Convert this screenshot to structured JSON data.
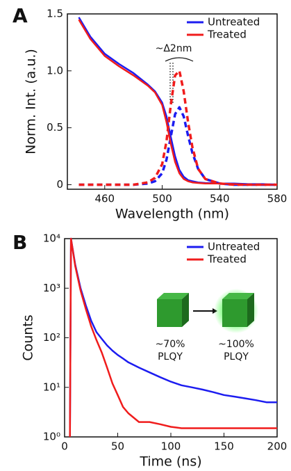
{
  "chart_data": [
    {
      "type": "line",
      "panel_label": "A",
      "xlabel": "Wavelength (nm)",
      "ylabel": "Norm. Int. (a.u.)",
      "x": [
        442,
        450,
        460,
        470,
        480,
        490,
        495,
        500,
        503,
        506,
        509,
        512,
        515,
        518,
        521,
        525,
        530,
        540,
        550,
        560,
        570,
        580
      ],
      "series": [
        {
          "name": "Untreated",
          "color": "#1c1cf0",
          "values": [
            1.47,
            1.3,
            1.15,
            1.06,
            0.98,
            0.88,
            0.82,
            0.72,
            0.6,
            0.42,
            0.25,
            0.13,
            0.07,
            0.04,
            0.03,
            0.02,
            0.015,
            0.01,
            0.01,
            0.005,
            0.005,
            0
          ],
          "pl_values": [
            0,
            0,
            0,
            0,
            0,
            0.01,
            0.03,
            0.1,
            0.22,
            0.42,
            0.62,
            0.68,
            0.6,
            0.43,
            0.28,
            0.14,
            0.05,
            0.01,
            0,
            0,
            0,
            0
          ]
        },
        {
          "name": "Treated",
          "color": "#f01c1c",
          "values": [
            1.45,
            1.28,
            1.13,
            1.04,
            0.96,
            0.87,
            0.81,
            0.7,
            0.55,
            0.36,
            0.2,
            0.1,
            0.05,
            0.03,
            0.02,
            0.015,
            0.01,
            0.01,
            0.005,
            0,
            0,
            0
          ],
          "pl_values": [
            0,
            0,
            0,
            0,
            0,
            0.02,
            0.06,
            0.18,
            0.38,
            0.7,
            0.96,
            1.0,
            0.82,
            0.55,
            0.33,
            0.14,
            0.05,
            0.01,
            0,
            0,
            0,
            0
          ]
        }
      ],
      "xlim": [
        434,
        580
      ],
      "xticks": [
        460,
        500,
        540,
        580
      ],
      "ylim": [
        -0.04,
        1.5
      ],
      "yticks": [
        0,
        0.5,
        {
          "value": 1,
          "label": "1.0"
        },
        1.5
      ],
      "legend": "upper right",
      "annotations": [
        "~Δ2nm"
      ]
    },
    {
      "type": "line",
      "panel_label": "B",
      "xlabel": "Time (ns)",
      "ylabel": "Counts",
      "log_y": true,
      "x": [
        5,
        6,
        10,
        15,
        20,
        25,
        30,
        35,
        40,
        45,
        50,
        55,
        60,
        70,
        80,
        90,
        100,
        110,
        120,
        130,
        140,
        150,
        160,
        170,
        180,
        190,
        200
      ],
      "series": [
        {
          "name": "Untreated",
          "color": "#1c1cf0",
          "values": [
            1,
            10000,
            3000,
            1000,
            450,
            220,
            130,
            95,
            70,
            55,
            45,
            38,
            32,
            25,
            20,
            16,
            13,
            11,
            10,
            9,
            8,
            7,
            6.5,
            6,
            5.5,
            5,
            5
          ]
        },
        {
          "name": "Treated",
          "color": "#f01c1c",
          "values": [
            1,
            10000,
            2800,
            900,
            380,
            170,
            90,
            50,
            25,
            12,
            7,
            4,
            3,
            2,
            2,
            1.8,
            1.6,
            1.5,
            1.5,
            1.5,
            1.5,
            1.5,
            1.5,
            1.5,
            1.5,
            1.5,
            1.5
          ]
        }
      ],
      "xlim": [
        0,
        200
      ],
      "xticks": [
        0,
        50,
        100,
        150,
        200
      ],
      "ylim": [
        1,
        10000
      ],
      "yticks": [
        {
          "value": 1,
          "label": "10⁰"
        },
        {
          "value": 10,
          "label": "10¹"
        },
        {
          "value": 100,
          "label": "10²"
        },
        {
          "value": 1000,
          "label": "10³"
        },
        {
          "value": 10000,
          "label": "10⁴"
        }
      ],
      "legend": "upper right",
      "annotations": [
        "~70%",
        "PLQY",
        "~100%",
        "PLQY"
      ]
    }
  ]
}
